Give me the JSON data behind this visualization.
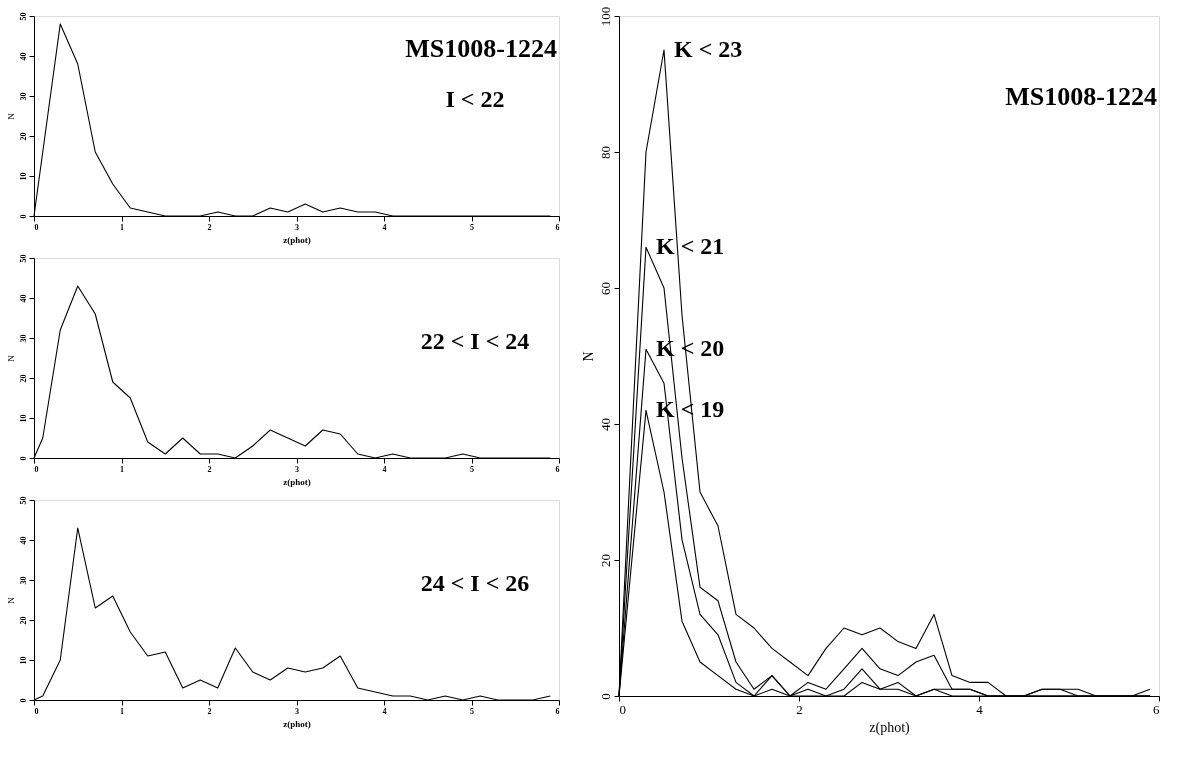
{
  "chart_data": [
    {
      "type": "line",
      "title": "MS1008-1224",
      "xlabel": "z(phot)",
      "ylabel": "N",
      "xlim": [
        0,
        6
      ],
      "ylim": [
        0,
        50
      ],
      "xticks": [
        0,
        1,
        2,
        3,
        4,
        5,
        6
      ],
      "yticks": [
        0,
        10,
        20,
        30,
        40,
        50
      ],
      "series": [
        {
          "name": "I < 22",
          "color": "#000000",
          "x": [
            0,
            0.3,
            0.5,
            0.7,
            0.9,
            1.1,
            1.3,
            1.5,
            1.7,
            1.9,
            2.1,
            2.3,
            2.5,
            2.7,
            2.9,
            3.1,
            3.3,
            3.5,
            3.7,
            3.9,
            4.1,
            4.3,
            4.5,
            4.7,
            4.9,
            5.1,
            5.3,
            5.5,
            5.7,
            5.9
          ],
          "values": [
            0,
            48,
            38,
            16,
            8,
            2,
            1,
            0,
            0,
            0,
            1,
            0,
            0,
            2,
            1,
            3,
            1,
            2,
            1,
            1,
            0,
            0,
            0,
            0,
            0,
            0,
            0,
            0,
            0,
            0
          ]
        }
      ]
    },
    {
      "type": "line",
      "xlabel": "z(phot)",
      "ylabel": "N",
      "xlim": [
        0,
        6
      ],
      "ylim": [
        0,
        50
      ],
      "xticks": [
        0,
        1,
        2,
        3,
        4,
        5,
        6
      ],
      "yticks": [
        0,
        10,
        20,
        30,
        40,
        50
      ],
      "series": [
        {
          "name": "22 < I < 24",
          "color": "#000000",
          "x": [
            0,
            0.1,
            0.3,
            0.5,
            0.7,
            0.9,
            1.1,
            1.3,
            1.5,
            1.7,
            1.9,
            2.1,
            2.3,
            2.5,
            2.7,
            2.9,
            3.1,
            3.3,
            3.5,
            3.7,
            3.9,
            4.1,
            4.3,
            4.5,
            4.7,
            4.9,
            5.1,
            5.3,
            5.5,
            5.7,
            5.9
          ],
          "values": [
            0,
            5,
            32,
            43,
            36,
            19,
            15,
            4,
            1,
            5,
            1,
            1,
            0,
            3,
            7,
            5,
            3,
            7,
            6,
            1,
            0,
            1,
            0,
            0,
            0,
            1,
            0,
            0,
            0,
            0,
            0
          ]
        }
      ]
    },
    {
      "type": "line",
      "xlabel": "z(phot)",
      "ylabel": "N",
      "xlim": [
        0,
        6
      ],
      "ylim": [
        0,
        50
      ],
      "xticks": [
        0,
        1,
        2,
        3,
        4,
        5,
        6
      ],
      "yticks": [
        0,
        10,
        20,
        30,
        40,
        50
      ],
      "series": [
        {
          "name": "24 < I < 26",
          "color": "#000000",
          "x": [
            0,
            0.1,
            0.3,
            0.5,
            0.7,
            0.9,
            1.1,
            1.3,
            1.5,
            1.7,
            1.9,
            2.1,
            2.3,
            2.5,
            2.7,
            2.9,
            3.1,
            3.3,
            3.5,
            3.7,
            3.9,
            4.1,
            4.3,
            4.5,
            4.7,
            4.9,
            5.1,
            5.3,
            5.5,
            5.7,
            5.9
          ],
          "values": [
            0,
            1,
            10,
            43,
            23,
            26,
            17,
            11,
            12,
            3,
            5,
            3,
            13,
            7,
            5,
            8,
            7,
            8,
            11,
            3,
            2,
            1,
            1,
            0,
            1,
            0,
            1,
            0,
            0,
            0,
            1
          ]
        }
      ]
    },
    {
      "type": "line",
      "title": "MS1008-1224",
      "xlabel": "z(phot)",
      "ylabel": "N",
      "xlim": [
        0,
        6
      ],
      "ylim": [
        0,
        100
      ],
      "xticks": [
        0,
        2,
        4,
        6
      ],
      "yticks": [
        0,
        20,
        40,
        60,
        80,
        100
      ],
      "series": [
        {
          "name": "K < 23",
          "color": "#000000",
          "x": [
            0,
            0.3,
            0.5,
            0.7,
            0.9,
            1.1,
            1.3,
            1.5,
            1.7,
            1.9,
            2.1,
            2.3,
            2.5,
            2.7,
            2.9,
            3.1,
            3.3,
            3.5,
            3.7,
            3.9,
            4.1,
            4.3,
            4.5,
            4.7,
            4.9,
            5.1,
            5.3,
            5.5,
            5.7,
            5.9
          ],
          "values": [
            0,
            80,
            95,
            56,
            30,
            25,
            12,
            10,
            7,
            5,
            3,
            7,
            10,
            9,
            10,
            8,
            7,
            12,
            3,
            2,
            2,
            0,
            0,
            1,
            1,
            1,
            0,
            0,
            0,
            1
          ]
        },
        {
          "name": "K < 21",
          "color": "#000000",
          "x": [
            0,
            0.3,
            0.5,
            0.7,
            0.9,
            1.1,
            1.3,
            1.5,
            1.7,
            1.9,
            2.1,
            2.3,
            2.5,
            2.7,
            2.9,
            3.1,
            3.3,
            3.5,
            3.7,
            3.9,
            4.1,
            4.3,
            4.5,
            4.7,
            4.9,
            5.1,
            5.3,
            5.5,
            5.7,
            5.9
          ],
          "values": [
            0,
            66,
            60,
            35,
            16,
            14,
            5,
            1,
            3,
            0,
            2,
            1,
            4,
            7,
            4,
            3,
            5,
            6,
            1,
            1,
            0,
            0,
            0,
            1,
            1,
            0,
            0,
            0,
            0,
            0
          ]
        },
        {
          "name": "K < 20",
          "color": "#000000",
          "x": [
            0,
            0.3,
            0.5,
            0.7,
            0.9,
            1.1,
            1.3,
            1.5,
            1.7,
            1.9,
            2.1,
            2.3,
            2.5,
            2.7,
            2.9,
            3.1,
            3.3,
            3.5,
            3.7,
            3.9,
            4.1,
            4.3,
            4.5,
            4.7,
            4.9,
            5.1,
            5.3,
            5.5,
            5.7,
            5.9
          ],
          "values": [
            0,
            51,
            46,
            23,
            12,
            9,
            2,
            0,
            3,
            0,
            1,
            0,
            1,
            4,
            1,
            2,
            0,
            1,
            1,
            1,
            0,
            0,
            0,
            0,
            0,
            0,
            0,
            0,
            0,
            0
          ]
        },
        {
          "name": "K < 19",
          "color": "#000000",
          "x": [
            0,
            0.3,
            0.5,
            0.7,
            0.9,
            1.1,
            1.3,
            1.5,
            1.7,
            1.9,
            2.1,
            2.3,
            2.5,
            2.7,
            2.9,
            3.1,
            3.3,
            3.5,
            3.7,
            3.9,
            4.1,
            4.3,
            4.5,
            4.7,
            4.9,
            5.1,
            5.3,
            5.5,
            5.7,
            5.9
          ],
          "values": [
            0,
            42,
            30,
            11,
            5,
            3,
            1,
            0,
            1,
            0,
            0,
            0,
            0,
            2,
            1,
            1,
            0,
            1,
            0,
            0,
            0,
            0,
            0,
            0,
            0,
            0,
            0,
            0,
            0,
            0
          ]
        }
      ]
    }
  ]
}
